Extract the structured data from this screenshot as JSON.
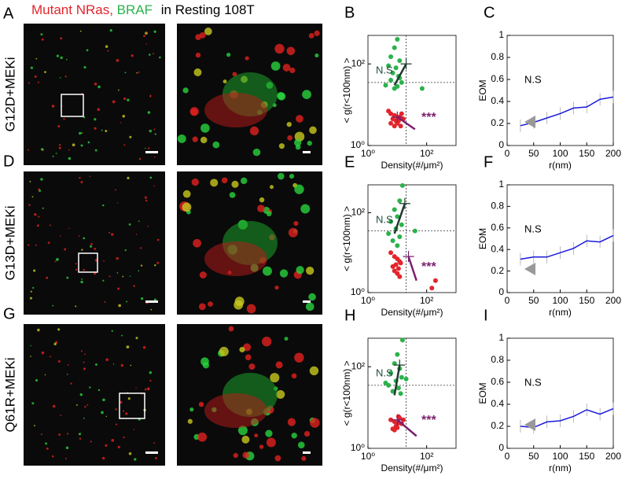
{
  "header": {
    "parts": [
      {
        "text": "Mutant NRas,",
        "color": "#e3242b"
      },
      {
        "text": "BRAF",
        "color": "#2bb24c"
      },
      {
        "text": "in Resting 108T",
        "color": "#000000"
      }
    ]
  },
  "rows": [
    {
      "panel": "A",
      "label": "G12D+MEKi"
    },
    {
      "panel": "D",
      "label": "G13D+MEKi"
    },
    {
      "panel": "G",
      "label": "Q61R+MEKi"
    }
  ],
  "chart_data": [
    {
      "type": "scatter",
      "panel": "B",
      "xlabel": "Density(#/μm²)",
      "ylabel": "< g(r<100nm) >",
      "log": true,
      "xlim": [
        1,
        1000
      ],
      "ylim": [
        1,
        500
      ],
      "xticks": [
        {
          "value": 1,
          "label": "10⁰"
        },
        {
          "value": 100,
          "label": "10²"
        }
      ],
      "yticks": [
        {
          "value": 1,
          "label": "10⁰"
        },
        {
          "value": 100,
          "label": "10²"
        }
      ],
      "ref_x": 20,
      "ref_y": 35,
      "series": [
        {
          "color": "#2bb24c",
          "x": [
            10,
            8,
            6,
            12,
            5,
            9,
            7,
            11,
            6,
            14,
            4,
            8,
            10,
            70,
            12
          ],
          "values": [
            400,
            250,
            150,
            120,
            90,
            80,
            60,
            50,
            40,
            35,
            30,
            25,
            28,
            25,
            45
          ]
        },
        {
          "color": "#e3242b",
          "x": [
            5,
            6,
            8,
            10,
            12,
            7,
            9,
            11,
            6,
            14,
            8,
            10,
            16,
            13
          ],
          "values": [
            7,
            6,
            5.5,
            5,
            5,
            4.5,
            4,
            4,
            3.5,
            6,
            3,
            3.5,
            4.5,
            3
          ]
        }
      ],
      "trends": [
        {
          "color": "#1e3a2e",
          "x": [
            8,
            20
          ],
          "values": [
            30,
            100
          ]
        },
        {
          "color": "#7b1f6e",
          "x": [
            10,
            40
          ],
          "values": [
            5,
            2.5
          ]
        }
      ],
      "annotations": [
        {
          "text": "N.S",
          "color": "#1e4d3a"
        },
        {
          "text": "***",
          "color": "#7b1f6e"
        }
      ]
    },
    {
      "type": "line",
      "panel": "C",
      "xlabel": "r(nm)",
      "ylabel": "EOM",
      "xlim": [
        0,
        200
      ],
      "ylim": [
        0,
        1
      ],
      "xticks": [
        0,
        50,
        100,
        150,
        200
      ],
      "yticks": [
        0,
        0.2,
        0.4,
        0.6,
        0.8,
        1
      ],
      "series": [
        {
          "color": "#1a1adb",
          "x": [
            25,
            50,
            75,
            100,
            125,
            150,
            175,
            200
          ],
          "values": [
            0.18,
            0.21,
            0.25,
            0.29,
            0.34,
            0.35,
            0.42,
            0.44
          ]
        }
      ],
      "annotations": [
        {
          "text": "N.S",
          "color": "#000000"
        }
      ]
    },
    {
      "type": "scatter",
      "panel": "E",
      "xlabel": "Density(#/μm²)",
      "ylabel": "< g(r<100nm) >",
      "log": true,
      "xlim": [
        1,
        1000
      ],
      "ylim": [
        1,
        500
      ],
      "xticks": [
        {
          "value": 1,
          "label": "10⁰"
        },
        {
          "value": 100,
          "label": "10²"
        }
      ],
      "yticks": [
        {
          "value": 1,
          "label": "10⁰"
        },
        {
          "value": 100,
          "label": "10²"
        }
      ],
      "ref_x": 20,
      "ref_y": 35,
      "series": [
        {
          "color": "#2bb24c",
          "x": [
            15,
            12,
            8,
            10,
            6,
            14,
            9,
            5,
            12,
            7,
            40,
            10
          ],
          "values": [
            480,
            200,
            120,
            80,
            60,
            50,
            40,
            30,
            25,
            20,
            35,
            15
          ]
        },
        {
          "color": "#e3242b",
          "x": [
            6,
            8,
            10,
            12,
            9,
            7,
            11,
            13,
            8,
            10,
            200,
            150,
            12
          ],
          "values": [
            10,
            8,
            7,
            6,
            5,
            4.5,
            4,
            5.5,
            3.5,
            3,
            2,
            1.3,
            2.5
          ]
        }
      ],
      "trends": [
        {
          "color": "#1e3a2e",
          "x": [
            8,
            18
          ],
          "values": [
            30,
            170
          ]
        },
        {
          "color": "#7b1f6e",
          "x": [
            24,
            45
          ],
          "values": [
            8,
            2
          ]
        }
      ],
      "annotations": [
        {
          "text": "N.S",
          "color": "#1e4d3a"
        },
        {
          "text": "***",
          "color": "#7b1f6e"
        }
      ]
    },
    {
      "type": "line",
      "panel": "F",
      "xlabel": "r(nm)",
      "ylabel": "EOM",
      "xlim": [
        0,
        200
      ],
      "ylim": [
        0,
        1
      ],
      "xticks": [
        0,
        50,
        100,
        150,
        200
      ],
      "yticks": [
        0,
        0.2,
        0.4,
        0.6,
        0.8,
        1
      ],
      "series": [
        {
          "color": "#1a1adb",
          "x": [
            25,
            50,
            75,
            100,
            125,
            150,
            175,
            200
          ],
          "values": [
            0.31,
            0.33,
            0.33,
            0.37,
            0.41,
            0.48,
            0.47,
            0.53
          ]
        }
      ],
      "annotations": [
        {
          "text": "N.S",
          "color": "#000000"
        }
      ]
    },
    {
      "type": "scatter",
      "panel": "H",
      "xlabel": "Density(#/μm²)",
      "ylabel": "< g(r<100nm) >",
      "log": true,
      "xlim": [
        1,
        1000
      ],
      "ylim": [
        1,
        500
      ],
      "xticks": [
        {
          "value": 1,
          "label": "10⁰"
        },
        {
          "value": 100,
          "label": "10²"
        }
      ],
      "yticks": [
        {
          "value": 1,
          "label": "10⁰"
        },
        {
          "value": 100,
          "label": "10²"
        }
      ],
      "ref_x": 20,
      "ref_y": 35,
      "series": [
        {
          "color": "#2bb24c",
          "x": [
            15,
            10,
            8,
            12,
            6,
            14,
            9,
            5,
            11,
            7,
            13,
            20,
            4
          ],
          "values": [
            450,
            200,
            120,
            90,
            70,
            55,
            45,
            35,
            30,
            25,
            22,
            50,
            40
          ]
        },
        {
          "color": "#e3242b",
          "x": [
            6,
            8,
            10,
            12,
            9,
            7,
            11,
            14,
            8,
            10,
            16
          ],
          "values": [
            5,
            4.5,
            4,
            5.5,
            3.5,
            3,
            6,
            4,
            2.8,
            3.2,
            5
          ]
        }
      ],
      "trends": [
        {
          "color": "#1e3a2e",
          "x": [
            8,
            12
          ],
          "values": [
            20,
            110
          ]
        },
        {
          "color": "#7b1f6e",
          "x": [
            10,
            45
          ],
          "values": [
            5,
            2
          ]
        }
      ],
      "annotations": [
        {
          "text": "N.S",
          "color": "#1e4d3a"
        },
        {
          "text": "***",
          "color": "#7b1f6e"
        }
      ]
    },
    {
      "type": "line",
      "panel": "I",
      "xlabel": "r(nm)",
      "ylabel": "EOM",
      "xlim": [
        0,
        200
      ],
      "ylim": [
        0,
        1
      ],
      "xticks": [
        0,
        50,
        100,
        150,
        200
      ],
      "yticks": [
        0,
        0.2,
        0.4,
        0.6,
        0.8,
        1
      ],
      "series": [
        {
          "color": "#1a1adb",
          "x": [
            25,
            50,
            75,
            100,
            125,
            150,
            175,
            200
          ],
          "values": [
            0.2,
            0.19,
            0.24,
            0.25,
            0.29,
            0.35,
            0.31,
            0.36
          ]
        }
      ],
      "annotations": [
        {
          "text": "N.S",
          "color": "#000000"
        }
      ]
    }
  ]
}
